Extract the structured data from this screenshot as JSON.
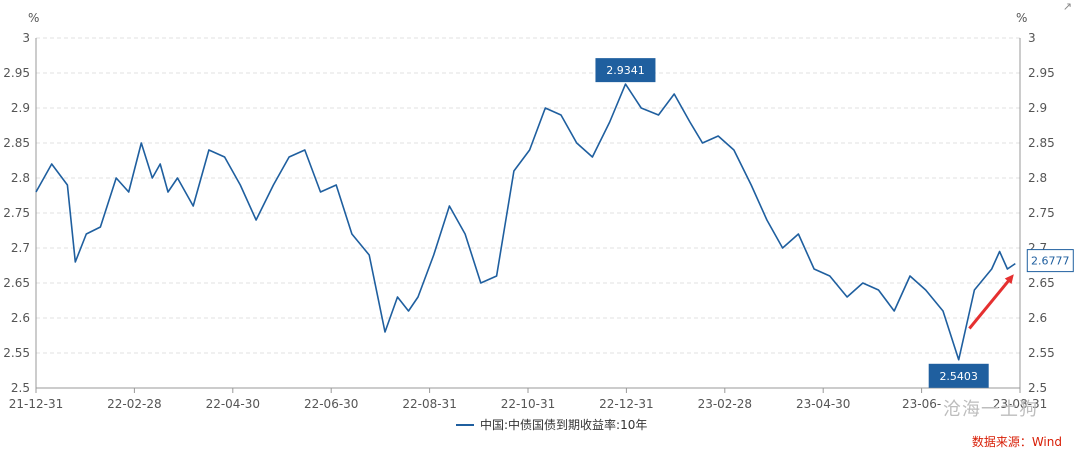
{
  "corner_icon": "↗",
  "watermark_text": "沧海一土狗",
  "source_text": "数据来源：Wind",
  "legend_label": "中国:中债国债到期收益率:10年",
  "colors": {
    "line": "#1f5f9f",
    "label_bg": "#1f5f9f",
    "arrow": "#e53030"
  },
  "chart_data": {
    "type": "line",
    "title": "",
    "ylabel_left": "%",
    "ylabel_right": "%",
    "ylim": [
      2.5,
      3.0
    ],
    "yticks": [
      "2.5",
      "2.55",
      "2.6",
      "2.65",
      "2.7",
      "2.75",
      "2.8",
      "2.85",
      "2.9",
      "2.95",
      "3"
    ],
    "xticks": [
      "21-12-31",
      "22-02-28",
      "22-04-30",
      "22-06-30",
      "22-08-31",
      "22-10-31",
      "22-12-31",
      "23-02-28",
      "23-04-30",
      "23-06-",
      "23-08-31"
    ],
    "grid": true,
    "legend_position": "bottom",
    "series": [
      {
        "name": "中国:中债国债到期收益率:10年",
        "x": [
          "2021-12-31",
          "2022-01-10",
          "2022-01-20",
          "2022-01-25",
          "2022-02-01",
          "2022-02-10",
          "2022-02-20",
          "2022-02-28",
          "2022-03-08",
          "2022-03-15",
          "2022-03-20",
          "2022-03-25",
          "2022-03-31",
          "2022-04-10",
          "2022-04-20",
          "2022-04-30",
          "2022-05-10",
          "2022-05-20",
          "2022-05-31",
          "2022-06-10",
          "2022-06-20",
          "2022-06-30",
          "2022-07-10",
          "2022-07-20",
          "2022-07-31",
          "2022-08-10",
          "2022-08-18",
          "2022-08-25",
          "2022-08-31",
          "2022-09-10",
          "2022-09-20",
          "2022-09-30",
          "2022-10-10",
          "2022-10-20",
          "2022-10-31",
          "2022-11-10",
          "2022-11-20",
          "2022-11-30",
          "2022-12-10",
          "2022-12-20",
          "2022-12-31",
          "2023-01-10",
          "2023-01-20",
          "2023-01-31",
          "2023-02-10",
          "2023-02-20",
          "2023-02-28",
          "2023-03-10",
          "2023-03-20",
          "2023-03-31",
          "2023-04-10",
          "2023-04-20",
          "2023-04-30",
          "2023-05-10",
          "2023-05-20",
          "2023-05-31",
          "2023-06-10",
          "2023-06-20",
          "2023-06-30",
          "2023-07-10",
          "2023-07-20",
          "2023-07-31",
          "2023-08-10",
          "2023-08-20",
          "2023-08-31",
          "2023-09-05",
          "2023-09-10",
          "2023-09-15"
        ],
        "values": [
          2.78,
          2.82,
          2.79,
          2.68,
          2.72,
          2.73,
          2.8,
          2.78,
          2.85,
          2.8,
          2.82,
          2.78,
          2.8,
          2.76,
          2.84,
          2.83,
          2.79,
          2.74,
          2.79,
          2.83,
          2.84,
          2.78,
          2.79,
          2.72,
          2.69,
          2.58,
          2.63,
          2.61,
          2.63,
          2.69,
          2.76,
          2.72,
          2.65,
          2.66,
          2.81,
          2.84,
          2.9,
          2.89,
          2.85,
          2.83,
          2.88,
          2.9341,
          2.9,
          2.89,
          2.92,
          2.88,
          2.85,
          2.86,
          2.84,
          2.79,
          2.74,
          2.7,
          2.72,
          2.67,
          2.66,
          2.63,
          2.65,
          2.64,
          2.61,
          2.66,
          2.64,
          2.61,
          2.5403,
          2.64,
          2.67,
          2.695,
          2.67,
          2.6777
        ]
      }
    ],
    "annotations": [
      {
        "text": "2.9341",
        "x": "2023-01-10",
        "y": 2.9341,
        "position": "above"
      },
      {
        "text": "2.5403",
        "x": "2023-08-10",
        "y": 2.5403,
        "position": "below"
      },
      {
        "text": "2.6777",
        "x": "2023-09-15",
        "y": 2.6777,
        "position": "right"
      }
    ]
  }
}
